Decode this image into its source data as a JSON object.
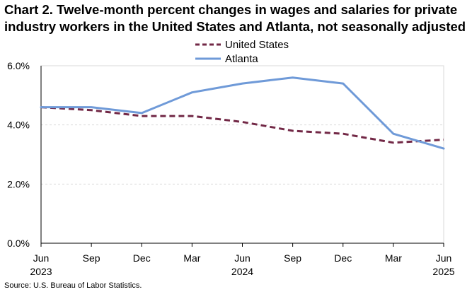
{
  "title": {
    "line1": "Chart 2. Twelve-month percent changes in wages and salaries for private",
    "line2": "industry workers in the United States and Atlanta, not seasonally adjusted"
  },
  "source": "Source: U.S. Bureau of Labor Statistics.",
  "chart_data": {
    "type": "line",
    "title": "Twelve-month percent changes in wages and salaries for private industry workers in the United States and Atlanta, not seasonally adjusted",
    "xlabel": "",
    "ylabel": "",
    "ylim": [
      0,
      6
    ],
    "yticks": [
      0,
      2,
      4,
      6
    ],
    "ytick_labels": [
      "0.0%",
      "2.0%",
      "4.0%",
      "6.0%"
    ],
    "grid": true,
    "legend_position": "top-center",
    "categories": [
      "Jun 2023",
      "Sep 2023",
      "Dec 2023",
      "Mar 2024",
      "Jun 2024",
      "Sep 2024",
      "Dec 2024",
      "Mar 2025",
      "Jun 2025"
    ],
    "xtick_labels": [
      {
        "month": "Jun",
        "year": "2023"
      },
      {
        "month": "Sep",
        "year": ""
      },
      {
        "month": "Dec",
        "year": ""
      },
      {
        "month": "Mar",
        "year": ""
      },
      {
        "month": "Jun",
        "year": "2024"
      },
      {
        "month": "Sep",
        "year": ""
      },
      {
        "month": "Dec",
        "year": ""
      },
      {
        "month": "Mar",
        "year": ""
      },
      {
        "month": "Jun",
        "year": "2025"
      }
    ],
    "series": [
      {
        "name": "United States",
        "color": "#722846",
        "style": "dashed",
        "values": [
          4.6,
          4.5,
          4.3,
          4.3,
          4.1,
          3.8,
          3.7,
          3.4,
          3.5
        ]
      },
      {
        "name": "Atlanta",
        "color": "#6f9ad8",
        "style": "solid",
        "values": [
          4.6,
          4.6,
          4.4,
          5.1,
          5.4,
          5.6,
          5.4,
          3.7,
          3.2
        ]
      }
    ]
  },
  "colors": {
    "gridline": "#d9d9d9",
    "axis": "#000000"
  }
}
